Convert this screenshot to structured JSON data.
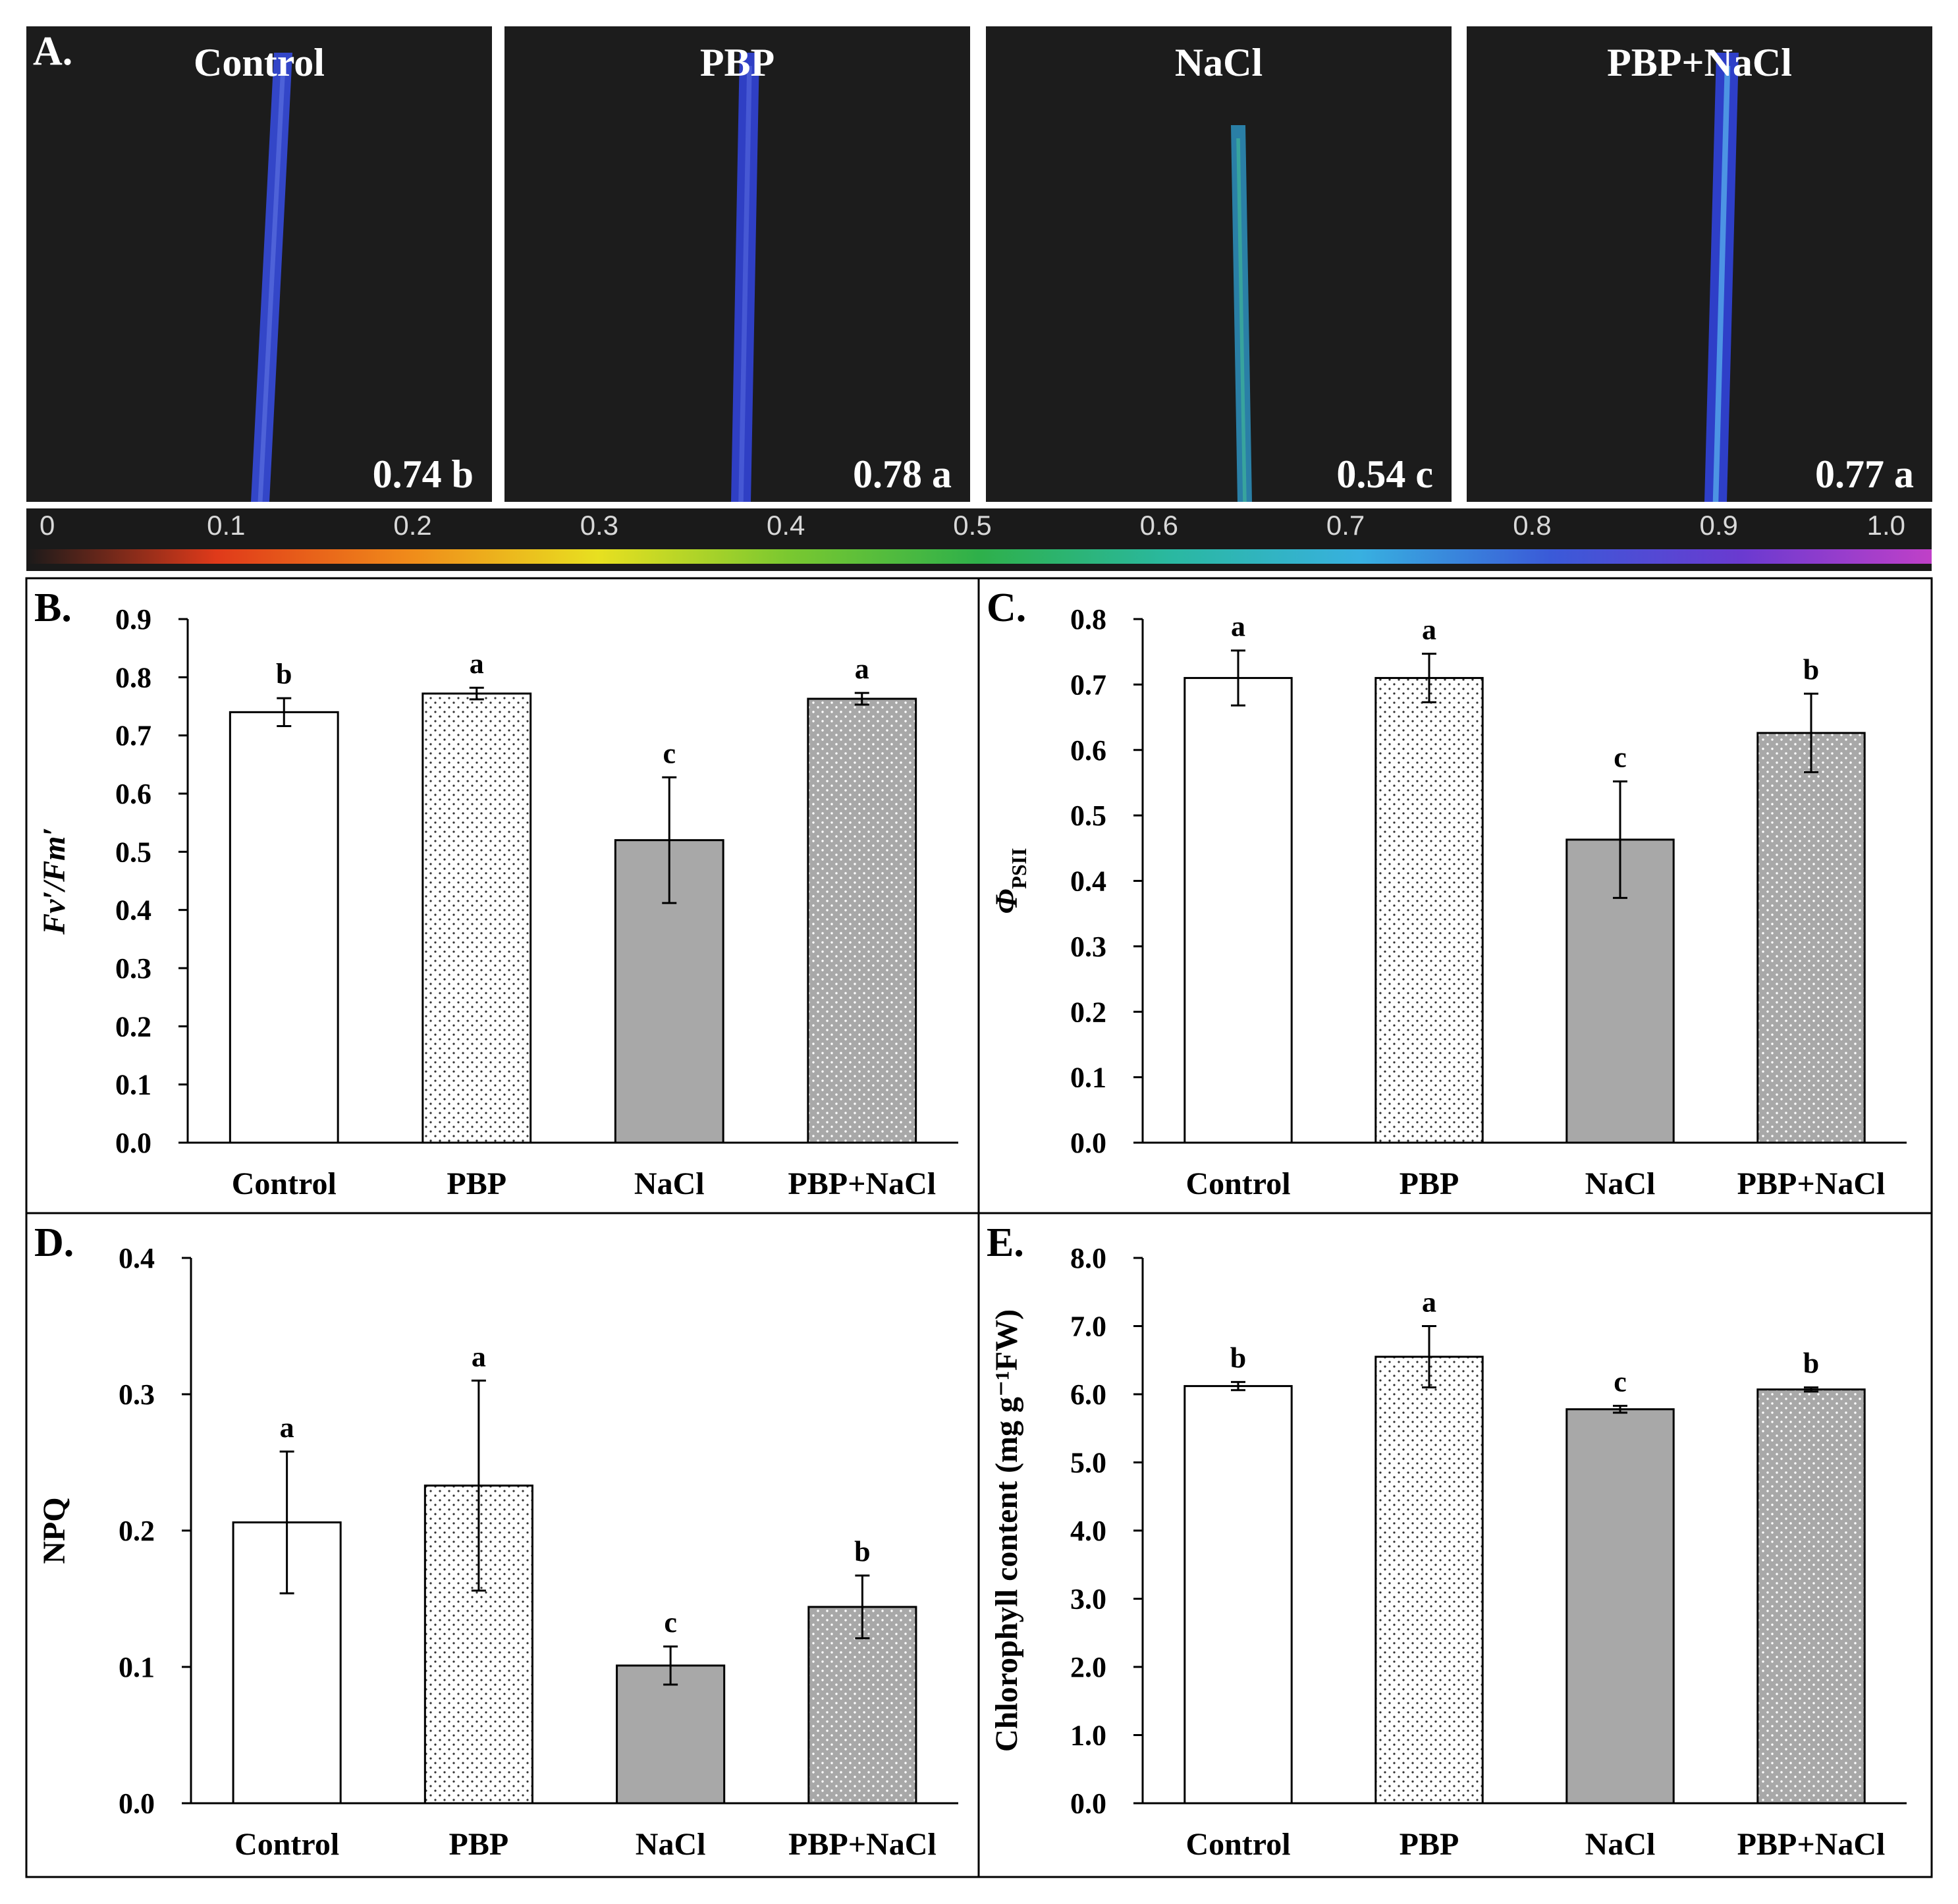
{
  "panel_a": {
    "letter": "A.",
    "images": [
      {
        "title": "Control",
        "value_label": "0.74 b",
        "leaf_color": "#3346c8",
        "leaf_highlight": "#5a6ee0"
      },
      {
        "title": "PBP",
        "value_label": "0.78 a",
        "leaf_color": "#2f3fc4",
        "leaf_highlight": "#5063dc"
      },
      {
        "title": "NaCl",
        "value_label": "0.54 c",
        "leaf_color": "#2a7fa6",
        "leaf_highlight": "#3fb59a"
      },
      {
        "title": "PBP+NaCl",
        "value_label": "0.77 a",
        "leaf_color": "#2e3fc8",
        "leaf_highlight": "#5bb8f0"
      }
    ],
    "colorbar": {
      "ticks": [
        "0",
        "0.1",
        "0.2",
        "0.3",
        "0.4",
        "0.5",
        "0.6",
        "0.7",
        "0.8",
        "0.9",
        "1.0"
      ],
      "range": [
        0,
        1
      ],
      "gradient": [
        "#1a1a1a",
        "#e03a1a",
        "#f08a1a",
        "#e8e020",
        "#7ac830",
        "#2eb04a",
        "#2ab8a0",
        "#38b0e0",
        "#3a5ad8",
        "#6a3ad0",
        "#c040c8"
      ]
    }
  },
  "chart_data": [
    {
      "id": "B",
      "letter": "B.",
      "type": "bar",
      "categories": [
        "Control",
        "PBP",
        "NaCl",
        "PBP+NaCl"
      ],
      "values": [
        0.74,
        0.772,
        0.52,
        0.763
      ],
      "errors": [
        0.024,
        0.01,
        0.108,
        0.01
      ],
      "significance": [
        "b",
        "a",
        "c",
        "a"
      ],
      "ylabel_main": "Fv′/Fm′",
      "ylabel_sub": "",
      "ylim": [
        0,
        0.9
      ],
      "yticks": [
        "0.0",
        "0.1",
        "0.2",
        "0.3",
        "0.4",
        "0.5",
        "0.6",
        "0.7",
        "0.8",
        "0.9"
      ],
      "fills": [
        "white",
        "dots-sparse",
        "gray",
        "gray-dots"
      ]
    },
    {
      "id": "C",
      "letter": "C.",
      "type": "bar",
      "categories": [
        "Control",
        "PBP",
        "NaCl",
        "PBP+NaCl"
      ],
      "values": [
        0.71,
        0.71,
        0.463,
        0.626
      ],
      "errors": [
        0.042,
        0.037,
        0.089,
        0.06
      ],
      "significance": [
        "a",
        "a",
        "c",
        "b"
      ],
      "ylabel_main": "Φ",
      "ylabel_sub": "PSII",
      "ylim": [
        0,
        0.8
      ],
      "yticks": [
        "0.0",
        "0.1",
        "0.2",
        "0.3",
        "0.4",
        "0.5",
        "0.6",
        "0.7",
        "0.8"
      ],
      "fills": [
        "white",
        "dots-sparse",
        "gray",
        "gray-dots"
      ]
    },
    {
      "id": "D",
      "letter": "D.",
      "type": "bar",
      "categories": [
        "Control",
        "PBP",
        "NaCl",
        "PBP+NaCl"
      ],
      "values": [
        0.206,
        0.233,
        0.101,
        0.144
      ],
      "errors": [
        0.052,
        0.077,
        0.014,
        0.023
      ],
      "significance": [
        "a",
        "a",
        "c",
        "b"
      ],
      "ylabel_main": "NPQ",
      "ylabel_sub": "",
      "ylim": [
        0,
        0.4
      ],
      "yticks": [
        "0.0",
        "0.1",
        "0.2",
        "0.3",
        "0.4"
      ],
      "fills": [
        "white",
        "dots-sparse",
        "gray",
        "gray-dots"
      ]
    },
    {
      "id": "E",
      "letter": "E.",
      "type": "bar",
      "categories": [
        "Control",
        "PBP",
        "NaCl",
        "PBP+NaCl"
      ],
      "values": [
        6.12,
        6.55,
        5.78,
        6.07
      ],
      "errors": [
        0.06,
        0.45,
        0.05,
        0.03
      ],
      "significance": [
        "b",
        "a",
        "c",
        "b"
      ],
      "ylabel_main": "Chlorophyll content (mg g⁻¹FW)",
      "ylabel_sub": "",
      "ylim": [
        0,
        8
      ],
      "yticks": [
        "0.0",
        "1.0",
        "2.0",
        "3.0",
        "4.0",
        "5.0",
        "6.0",
        "7.0",
        "8.0"
      ],
      "fills": [
        "white",
        "dots-sparse",
        "gray",
        "gray-dots"
      ]
    }
  ]
}
